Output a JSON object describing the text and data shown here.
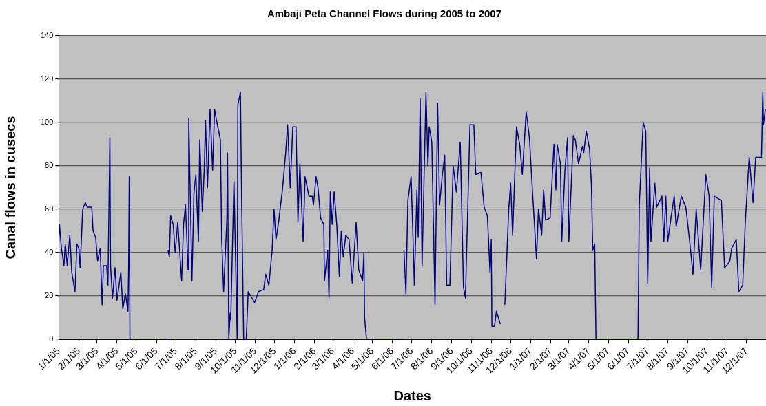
{
  "chart_data": {
    "type": "line",
    "title": "Ambaji Peta Channel Flows during 2005 to 2007",
    "xlabel": "Dates",
    "ylabel": "Canal flows in cusecs",
    "x": [
      "2005-01-01",
      "2005-01-02",
      "2005-01-05",
      "2005-01-09",
      "2005-01-11",
      "2005-01-14",
      "2005-01-18",
      "2005-01-21",
      "2005-01-26",
      "2005-01-29",
      "2005-02-01",
      "2005-02-03",
      "2005-02-07",
      "2005-02-11",
      "2005-02-14",
      "2005-02-21",
      "2005-02-23",
      "2005-02-27",
      "2005-03-02",
      "2005-03-06",
      "2005-03-09",
      "2005-03-11",
      "2005-03-16",
      "2005-03-18",
      "2005-03-21",
      "2005-03-22",
      "2005-03-25",
      "2005-03-29",
      "2005-04-01",
      "2005-04-07",
      "2005-04-10",
      "2005-04-14",
      "2005-04-18",
      "2005-04-19",
      "2005-04-20",
      "2005-04-21",
      "2005-06-16",
      "2005-06-17",
      "2005-06-19",
      "2005-06-21",
      "2005-06-23",
      "2005-06-27",
      "2005-06-30",
      "2005-07-04",
      "2005-07-10",
      "2005-07-13",
      "2005-07-16",
      "2005-07-20",
      "2005-07-21",
      "2005-07-26",
      "2005-07-29",
      "2005-08-01",
      "2005-08-05",
      "2005-08-07",
      "2005-08-11",
      "2005-08-14",
      "2005-08-16",
      "2005-08-19",
      "2005-08-23",
      "2005-08-27",
      "2005-08-30",
      "2005-09-02",
      "2005-09-08",
      "2005-09-10",
      "2005-09-13",
      "2005-09-18",
      "2005-09-19",
      "2005-09-21",
      "2005-09-23",
      "2005-09-24",
      "2005-09-29",
      "2005-10-04",
      "2005-10-05",
      "2005-10-09",
      "2005-10-11",
      "2005-10-14",
      "2005-10-18",
      "2005-10-21",
      "2005-10-31",
      "2005-11-06",
      "2005-11-14",
      "2005-11-17",
      "2005-11-22",
      "2005-11-27",
      "2005-11-30",
      "2005-12-03",
      "2005-12-07",
      "2005-12-13",
      "2005-12-18",
      "2005-12-21",
      "2005-12-25",
      "2005-12-29",
      "2006-01-03",
      "2006-01-06",
      "2006-01-09",
      "2006-01-14",
      "2006-01-17",
      "2006-01-23",
      "2006-01-28",
      "2006-01-30",
      "2006-02-03",
      "2006-02-06",
      "2006-02-10",
      "2006-02-15",
      "2006-02-16",
      "2006-02-21",
      "2006-02-23",
      "2006-02-25",
      "2006-02-28",
      "2006-03-03",
      "2006-03-07",
      "2006-03-11",
      "2006-03-14",
      "2006-03-17",
      "2006-03-21",
      "2006-03-26",
      "2006-03-31",
      "2006-04-06",
      "2006-04-10",
      "2006-04-16",
      "2006-04-18",
      "2006-04-19",
      "2006-04-22",
      "2006-06-17",
      "2006-06-18",
      "2006-06-19",
      "2006-06-22",
      "2006-06-25",
      "2006-06-30",
      "2006-07-03",
      "2006-07-05",
      "2006-07-09",
      "2006-07-11",
      "2006-07-14",
      "2006-07-17",
      "2006-07-23",
      "2006-07-26",
      "2006-07-28",
      "2006-08-01",
      "2006-08-06",
      "2006-08-10",
      "2006-08-13",
      "2006-08-17",
      "2006-08-21",
      "2006-08-24",
      "2006-08-29",
      "2006-09-03",
      "2006-09-08",
      "2006-09-14",
      "2006-09-19",
      "2006-09-22",
      "2006-09-29",
      "2006-10-05",
      "2006-10-08",
      "2006-10-16",
      "2006-10-21",
      "2006-10-26",
      "2006-10-30",
      "2006-11-01",
      "2006-11-02",
      "2006-11-06",
      "2006-11-09",
      "2006-11-15",
      "2006-11-18",
      "2006-11-22",
      "2006-11-28",
      "2006-12-01",
      "2006-12-04",
      "2006-12-10",
      "2006-12-15",
      "2006-12-19",
      "2006-12-25",
      "2006-12-30",
      "2007-01-04",
      "2007-01-10",
      "2007-01-13",
      "2007-01-18",
      "2007-01-21",
      "2007-01-24",
      "2007-01-31",
      "2007-02-06",
      "2007-02-09",
      "2007-02-11",
      "2007-02-16",
      "2007-02-18",
      "2007-02-23",
      "2007-02-27",
      "2007-03-01",
      "2007-03-08",
      "2007-03-11",
      "2007-03-16",
      "2007-03-22",
      "2007-03-24",
      "2007-03-28",
      "2007-04-02",
      "2007-04-05",
      "2007-04-07",
      "2007-04-10",
      "2007-04-12",
      "2007-06-16",
      "2007-06-18",
      "2007-06-24",
      "2007-06-28",
      "2007-07-01",
      "2007-07-04",
      "2007-07-06",
      "2007-07-12",
      "2007-07-15",
      "2007-07-23",
      "2007-07-26",
      "2007-07-29",
      "2007-08-01",
      "2007-08-06",
      "2007-08-11",
      "2007-08-14",
      "2007-08-22",
      "2007-08-29",
      "2007-09-04",
      "2007-09-09",
      "2007-09-14",
      "2007-09-21",
      "2007-09-26",
      "2007-09-29",
      "2007-10-04",
      "2007-10-08",
      "2007-10-12",
      "2007-10-23",
      "2007-10-28",
      "2007-11-05",
      "2007-11-08",
      "2007-11-15",
      "2007-11-19",
      "2007-11-25",
      "2007-11-29",
      "2007-12-05",
      "2007-12-11",
      "2007-12-15",
      "2007-12-24",
      "2007-12-26",
      "2007-12-27",
      "2007-12-30"
    ],
    "series": [
      {
        "color": "#000080",
        "values": [
          45,
          53,
          42,
          34,
          44,
          34,
          48,
          31,
          22,
          44,
          42,
          33,
          60,
          63,
          61,
          61,
          50,
          47,
          36,
          42,
          16,
          34,
          34,
          25,
          93,
          34,
          19,
          33,
          18,
          31,
          14,
          21,
          13,
          34,
          75,
          0,
          0,
          null,
          41,
          38,
          57,
          53,
          40,
          54,
          27,
          53,
          62,
          32,
          102,
          27,
          67,
          76,
          45,
          92,
          59,
          78,
          101,
          70,
          106,
          78,
          106,
          101,
          92,
          46,
          22,
          55,
          86,
          0,
          12,
          9,
          73,
          0,
          108,
          114,
          62,
          0,
          0,
          22,
          17,
          22,
          23,
          30,
          25,
          41,
          60,
          46,
          54,
          69,
          86,
          99,
          70,
          98,
          98,
          54,
          81,
          45,
          75,
          66,
          66,
          62,
          75,
          70,
          56,
          53,
          27,
          41,
          19,
          68,
          53,
          68,
          53,
          29,
          50,
          38,
          48,
          46,
          26,
          54,
          32,
          27,
          40,
          10,
          0,
          0,
          null,
          41,
          21,
          64,
          75,
          46,
          25,
          69,
          47,
          111,
          34,
          114,
          80,
          98,
          91,
          16,
          109,
          62,
          75,
          85,
          25,
          25,
          80,
          68,
          91,
          24,
          19,
          99,
          99,
          76,
          77,
          61,
          57,
          31,
          46,
          6,
          6,
          13,
          7,
          null,
          16,
          60,
          72,
          48,
          98,
          90,
          76,
          105,
          93,
          67,
          37,
          60,
          48,
          69,
          55,
          56,
          90,
          69,
          90,
          81,
          45,
          78,
          93,
          45,
          94,
          92,
          81,
          89,
          86,
          96,
          88,
          71,
          41,
          44,
          0,
          0,
          62,
          100,
          96,
          26,
          79,
          45,
          72,
          61,
          66,
          45,
          66,
          45,
          56,
          66,
          52,
          66,
          61,
          45,
          30,
          60,
          32,
          60,
          76,
          66,
          24,
          66,
          64,
          33,
          36,
          42,
          46,
          22,
          25,
          54,
          84,
          63,
          84,
          84,
          114,
          99,
          106
        ]
      }
    ],
    "xlim": [
      "2005-01-01",
      "2007-12-31"
    ],
    "xticks": [
      {
        "value": "2005-01-01",
        "label": "1/1/05"
      },
      {
        "value": "2005-02-01",
        "label": "2/1/05"
      },
      {
        "value": "2005-03-01",
        "label": "3/1/05"
      },
      {
        "value": "2005-04-01",
        "label": "4/1/05"
      },
      {
        "value": "2005-05-01",
        "label": "5/1/05"
      },
      {
        "value": "2005-06-01",
        "label": "6/1/05"
      },
      {
        "value": "2005-07-01",
        "label": "7/1/05"
      },
      {
        "value": "2005-08-01",
        "label": "8/1/05"
      },
      {
        "value": "2005-09-01",
        "label": "9/1/05"
      },
      {
        "value": "2005-10-01",
        "label": "10/1/05"
      },
      {
        "value": "2005-11-01",
        "label": "11/1/05"
      },
      {
        "value": "2005-12-01",
        "label": "12/1/05"
      },
      {
        "value": "2006-01-01",
        "label": "1/1/06"
      },
      {
        "value": "2006-02-01",
        "label": "2/1/06"
      },
      {
        "value": "2006-03-01",
        "label": "3/1/06"
      },
      {
        "value": "2006-04-01",
        "label": "4/1/06"
      },
      {
        "value": "2006-05-01",
        "label": "5/1/06"
      },
      {
        "value": "2006-06-01",
        "label": "6/1/06"
      },
      {
        "value": "2006-07-01",
        "label": "7/1/06"
      },
      {
        "value": "2006-08-01",
        "label": "8/1/06"
      },
      {
        "value": "2006-09-01",
        "label": "9/1/06"
      },
      {
        "value": "2006-10-01",
        "label": "10/1/06"
      },
      {
        "value": "2006-11-01",
        "label": "11/1/06"
      },
      {
        "value": "2006-12-01",
        "label": "12/1/06"
      },
      {
        "value": "2007-01-01",
        "label": "1/1/07"
      },
      {
        "value": "2007-02-01",
        "label": "2/1/07"
      },
      {
        "value": "2007-03-01",
        "label": "3/1/07"
      },
      {
        "value": "2007-04-01",
        "label": "4/1/07"
      },
      {
        "value": "2007-05-01",
        "label": "5/1/07"
      },
      {
        "value": "2007-06-01",
        "label": "6/1/07"
      },
      {
        "value": "2007-07-01",
        "label": "7/1/07"
      },
      {
        "value": "2007-08-01",
        "label": "8/1/07"
      },
      {
        "value": "2007-09-01",
        "label": "9/1/07"
      },
      {
        "value": "2007-10-01",
        "label": "10/1/07"
      },
      {
        "value": "2007-11-01",
        "label": "11/1/07"
      },
      {
        "value": "2007-12-01",
        "label": "12/1/07"
      }
    ],
    "ylim": [
      0,
      140
    ],
    "yticks": [
      0,
      20,
      40,
      60,
      80,
      100,
      120,
      140
    ],
    "grid": "y",
    "legend": false,
    "marker": "none",
    "line_style": "solid"
  }
}
